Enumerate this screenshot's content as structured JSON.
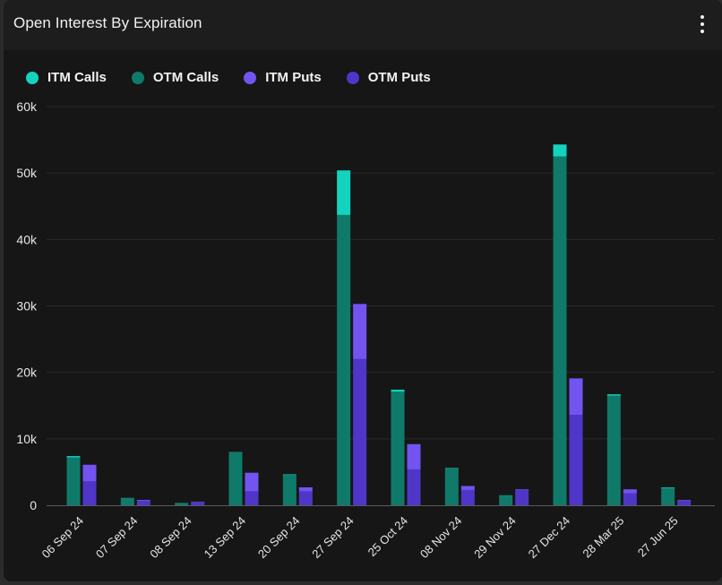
{
  "header": {
    "title": "Open Interest By Expiration",
    "menu_icon": "more-vertical-icon"
  },
  "colors": {
    "itm_calls": "#14d3be",
    "otm_calls": "#0f7a6a",
    "itm_puts": "#7354f0",
    "otm_puts": "#4f36c8",
    "grid": "#2a2a2a",
    "axis": "#5a5a5a"
  },
  "chart_data": {
    "type": "bar",
    "stacked": true,
    "grouping": "calls-and-puts-side-by-side",
    "categories": [
      "06 Sep 24",
      "07 Sep 24",
      "08 Sep 24",
      "13 Sep 24",
      "20 Sep 24",
      "27 Sep 24",
      "25 Oct 24",
      "08 Nov 24",
      "29 Nov 24",
      "27 Dec 24",
      "28 Mar 25",
      "27 Jun 25"
    ],
    "series": [
      {
        "name": "ITM Calls",
        "stack": "calls",
        "values": [
          200,
          50,
          20,
          50,
          100,
          6700,
          300,
          100,
          50,
          1800,
          200,
          100
        ]
      },
      {
        "name": "OTM Calls",
        "stack": "calls",
        "values": [
          7200,
          1050,
          330,
          7950,
          4550,
          43700,
          17100,
          5500,
          1450,
          52500,
          16500,
          2600
        ]
      },
      {
        "name": "ITM Puts",
        "stack": "puts",
        "values": [
          2500,
          150,
          50,
          2800,
          600,
          8300,
          3800,
          600,
          100,
          5500,
          600,
          100
        ]
      },
      {
        "name": "OTM Puts",
        "stack": "puts",
        "values": [
          3600,
          650,
          500,
          2100,
          2100,
          22000,
          5400,
          2300,
          2300,
          13600,
          1800,
          700
        ]
      }
    ],
    "title": "Open Interest By Expiration",
    "xlabel": "",
    "ylabel": "",
    "ylim": [
      0,
      60000
    ],
    "yticks": [
      0,
      10000,
      20000,
      30000,
      40000,
      50000,
      60000
    ],
    "ytick_labels": [
      "0",
      "10k",
      "20k",
      "30k",
      "40k",
      "50k",
      "60k"
    ],
    "grid": true,
    "legend_position": "top-left"
  }
}
